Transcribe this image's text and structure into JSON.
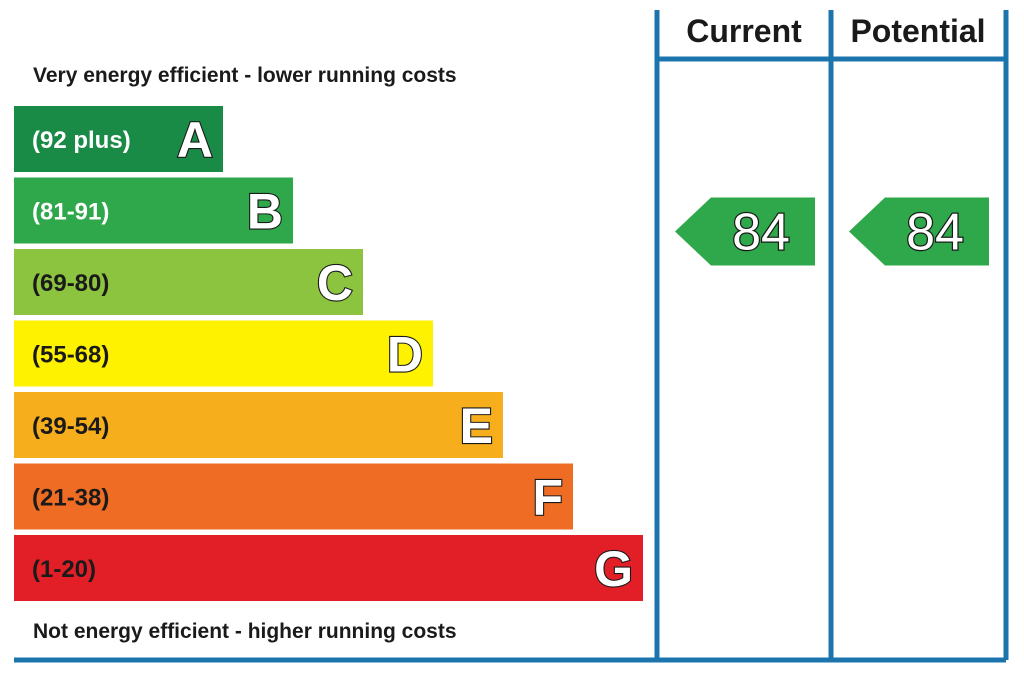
{
  "chart_data": {
    "type": "bar",
    "top_caption": "Very energy efficient - lower running costs",
    "bottom_caption": "Not energy efficient - higher running costs",
    "bands": [
      {
        "letter": "A",
        "range": "(92 plus)",
        "color": "#1a8a47",
        "text_color": "#ffffff"
      },
      {
        "letter": "B",
        "range": "(81-91)",
        "color": "#2ea84a",
        "text_color": "#ffffff"
      },
      {
        "letter": "C",
        "range": "(69-80)",
        "color": "#8cc43f",
        "text_color": "#1a1a1a"
      },
      {
        "letter": "D",
        "range": "(55-68)",
        "color": "#fff200",
        "text_color": "#1a1a1a"
      },
      {
        "letter": "E",
        "range": "(39-54)",
        "color": "#f7ae1d",
        "text_color": "#1a1a1a"
      },
      {
        "letter": "F",
        "range": "(21-38)",
        "color": "#ee6c24",
        "text_color": "#1a1a1a"
      },
      {
        "letter": "G",
        "range": "(1-20)",
        "color": "#e21e26",
        "text_color": "#1a1a1a"
      }
    ],
    "columns": [
      {
        "label": "Current",
        "value": 84,
        "band": "B"
      },
      {
        "label": "Potential",
        "value": 84,
        "band": "B"
      }
    ],
    "rating_color": "#2ea84a",
    "frame_color": "#1b75ac"
  }
}
